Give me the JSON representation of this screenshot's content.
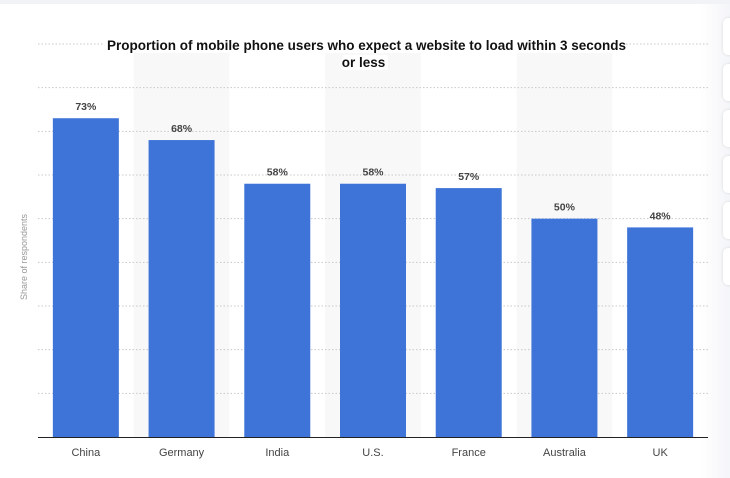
{
  "chart_data": {
    "type": "bar",
    "title": "Proportion of mobile phone users who expect a website to load within 3 seconds or less",
    "xlabel": "",
    "ylabel": "Share of respondents",
    "categories": [
      "China",
      "Germany",
      "India",
      "U.S.",
      "France",
      "Australia",
      "UK"
    ],
    "values": [
      73,
      68,
      58,
      58,
      57,
      50,
      48
    ],
    "data_labels": [
      "73%",
      "68%",
      "58%",
      "58%",
      "57%",
      "50%",
      "48%"
    ],
    "ylim": [
      0,
      90
    ],
    "grid": true,
    "bar_color": "#3e74d8"
  },
  "side_buttons": 6
}
